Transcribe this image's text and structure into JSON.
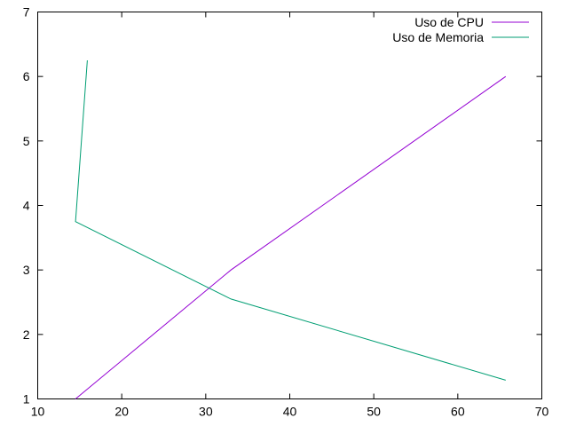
{
  "chart_data": {
    "type": "line",
    "title": "",
    "xlabel": "",
    "ylabel": "",
    "xlim": [
      10,
      70
    ],
    "ylim": [
      1,
      7
    ],
    "xticks": [
      10,
      20,
      30,
      40,
      50,
      60,
      70
    ],
    "yticks": [
      1,
      2,
      3,
      4,
      5,
      6,
      7
    ],
    "grid": false,
    "legend_position": "top-right",
    "series": [
      {
        "name": "Uso de CPU",
        "color": "#9400d3",
        "points": [
          [
            14.5,
            1.0
          ],
          [
            33.0,
            3.0
          ],
          [
            65.7,
            6.0
          ]
        ]
      },
      {
        "name": "Uso de Memoria",
        "color": "#009e73",
        "points": [
          [
            15.9,
            6.25
          ],
          [
            14.5,
            3.75
          ],
          [
            33.0,
            2.55
          ],
          [
            65.7,
            1.29
          ]
        ]
      }
    ]
  }
}
